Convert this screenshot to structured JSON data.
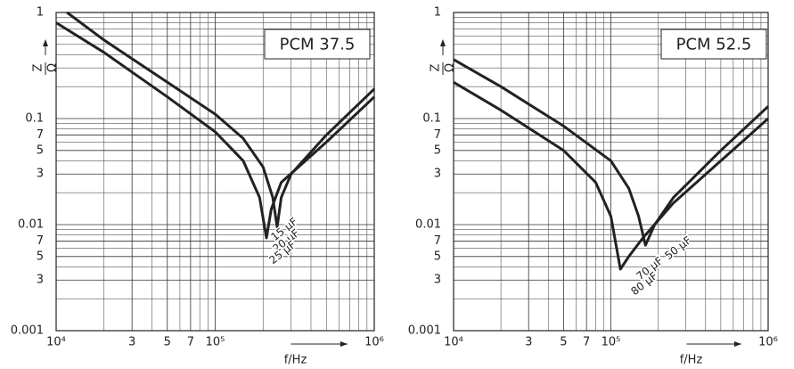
{
  "chart_data": [
    {
      "type": "line",
      "title": "PCM 37.5",
      "xlabel": "f/Hz",
      "ylabel_top": "Z",
      "ylabel_bottom": "Ω",
      "xlog": true,
      "ylog": true,
      "grid": true,
      "xlim": [
        10000,
        1000000
      ],
      "ylim": [
        0.001,
        1
      ],
      "xticks": [
        {
          "value": 10000,
          "label": "10⁴"
        },
        {
          "value": 30000,
          "label": "3"
        },
        {
          "value": 50000,
          "label": "5"
        },
        {
          "value": 70000,
          "label": "7"
        },
        {
          "value": 100000,
          "label": "10⁵"
        },
        {
          "value": 1000000,
          "label": "10⁶"
        }
      ],
      "yticks": [
        {
          "value": 1,
          "label": "1"
        },
        0.1,
        {
          "value": 0.07,
          "label": "7"
        },
        {
          "value": 0.05,
          "label": "5"
        },
        {
          "value": 0.03,
          "label": "3"
        },
        0.01,
        {
          "value": 0.007,
          "label": "7"
        },
        {
          "value": 0.005,
          "label": "5"
        },
        {
          "value": 0.003,
          "label": "3"
        },
        0.001
      ],
      "xminor": [
        20000,
        40000,
        60000,
        80000,
        90000,
        200000,
        300000,
        400000,
        500000,
        600000,
        700000,
        800000,
        900000
      ],
      "yminor": [
        0.2,
        0.3,
        0.4,
        0.5,
        0.6,
        0.7,
        0.8,
        0.9,
        0.02,
        0.04,
        0.06,
        0.08,
        0.09,
        0.002,
        0.004,
        0.006,
        0.008,
        0.009
      ],
      "series": [
        {
          "color": "#222222",
          "x": [
            11700,
            20000,
            50000,
            100000,
            150000,
            200000,
            230000,
            245000,
            260000,
            300000,
            500000,
            1000000
          ],
          "values": [
            1,
            0.55,
            0.22,
            0.11,
            0.065,
            0.035,
            0.018,
            0.0095,
            0.018,
            0.03,
            0.07,
            0.19
          ]
        },
        {
          "color": "#222222",
          "x": [
            10000,
            20000,
            50000,
            100000,
            150000,
            190000,
            210000,
            225000,
            260000,
            500000,
            1000000
          ],
          "values": [
            0.8,
            0.42,
            0.16,
            0.075,
            0.04,
            0.018,
            0.0075,
            0.014,
            0.025,
            0.06,
            0.16
          ]
        }
      ],
      "annotations": [
        "15 µF",
        "20 µF",
        "25 µF"
      ]
    },
    {
      "type": "line",
      "title": "PCM 52.5",
      "xlabel": "f/Hz",
      "ylabel_top": "Z",
      "ylabel_bottom": "Ω",
      "xlog": true,
      "ylog": true,
      "grid": true,
      "xlim": [
        10000,
        1000000
      ],
      "ylim": [
        0.001,
        1
      ],
      "xticks": [
        {
          "value": 10000,
          "label": "10⁴"
        },
        {
          "value": 30000,
          "label": "3"
        },
        {
          "value": 50000,
          "label": "5"
        },
        {
          "value": 70000,
          "label": "7"
        },
        {
          "value": 100000,
          "label": "10⁵"
        },
        {
          "value": 1000000,
          "label": "10⁶"
        }
      ],
      "yticks": [
        {
          "value": 1,
          "label": "1"
        },
        0.1,
        {
          "value": 0.07,
          "label": "7"
        },
        {
          "value": 0.05,
          "label": "5"
        },
        {
          "value": 0.03,
          "label": "3"
        },
        0.01,
        {
          "value": 0.007,
          "label": "7"
        },
        {
          "value": 0.005,
          "label": "5"
        },
        {
          "value": 0.003,
          "label": "3"
        },
        0.001
      ],
      "xminor": [
        20000,
        40000,
        60000,
        80000,
        90000,
        200000,
        300000,
        400000,
        500000,
        600000,
        700000,
        800000,
        900000
      ],
      "yminor": [
        0.2,
        0.3,
        0.4,
        0.5,
        0.6,
        0.7,
        0.8,
        0.9,
        0.02,
        0.04,
        0.06,
        0.08,
        0.09,
        0.002,
        0.004,
        0.006,
        0.008,
        0.009
      ],
      "series": [
        {
          "color": "#222222",
          "x": [
            10000,
            20000,
            50000,
            100000,
            130000,
            150000,
            166000,
            190000,
            250000,
            500000,
            1000000
          ],
          "values": [
            0.36,
            0.2,
            0.085,
            0.04,
            0.022,
            0.012,
            0.0064,
            0.01,
            0.018,
            0.05,
            0.13
          ]
        },
        {
          "color": "#222222",
          "x": [
            10000,
            20000,
            50000,
            80000,
            100000,
            115000,
            130000,
            160000,
            250000,
            500000,
            1000000
          ],
          "values": [
            0.22,
            0.12,
            0.05,
            0.025,
            0.012,
            0.0038,
            0.005,
            0.0075,
            0.016,
            0.04,
            0.1
          ]
        }
      ],
      "annotations": [
        "50 µF",
        "70 µF",
        "80 µF"
      ]
    }
  ]
}
